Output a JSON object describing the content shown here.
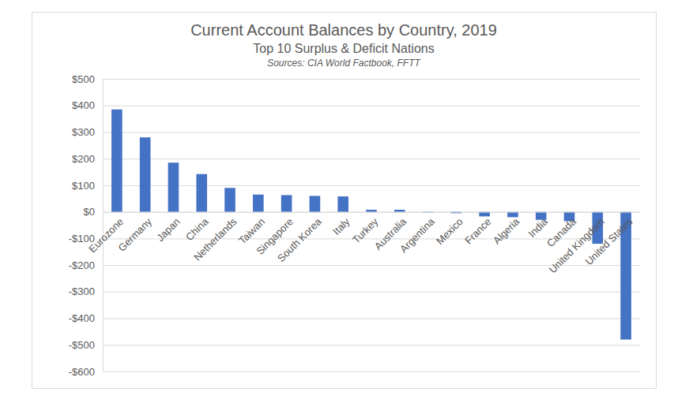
{
  "chart_data": {
    "type": "bar",
    "title": "Current Account Balances by Country, 2019",
    "subtitle": "Top 10 Surplus & Deficit Nations",
    "annotations": [
      "Sources: CIA World Factbook, FFTT"
    ],
    "categories": [
      "Eurozone",
      "Germany",
      "Japan",
      "China",
      "Netherlands",
      "Taiwan",
      "Singapore",
      "South Korea",
      "Italy",
      "Turkey",
      "Australia",
      "Argentina",
      "Mexico",
      "France",
      "Algeria",
      "India",
      "Canada",
      "United Kingdom",
      "United States"
    ],
    "values": [
      385,
      280,
      185,
      142,
      90,
      65,
      63,
      60,
      58,
      8,
      8,
      -2,
      -5,
      -17,
      -20,
      -30,
      -35,
      -120,
      -480
    ],
    "color": "#4472c4",
    "ylim": [
      -600,
      500
    ],
    "yticks": [
      {
        "value": 500,
        "label": "$500"
      },
      {
        "value": 400,
        "label": "$400"
      },
      {
        "value": 300,
        "label": "$300"
      },
      {
        "value": 200,
        "label": "$200"
      },
      {
        "value": 100,
        "label": "$100"
      },
      {
        "value": 0,
        "label": "$0"
      },
      {
        "value": -100,
        "label": "-$100"
      },
      {
        "value": -200,
        "label": "-$200"
      },
      {
        "value": -300,
        "label": "-$300"
      },
      {
        "value": -400,
        "label": "-$400"
      },
      {
        "value": -500,
        "label": "-$500"
      },
      {
        "value": -600,
        "label": "-$600"
      }
    ],
    "grid": true
  }
}
